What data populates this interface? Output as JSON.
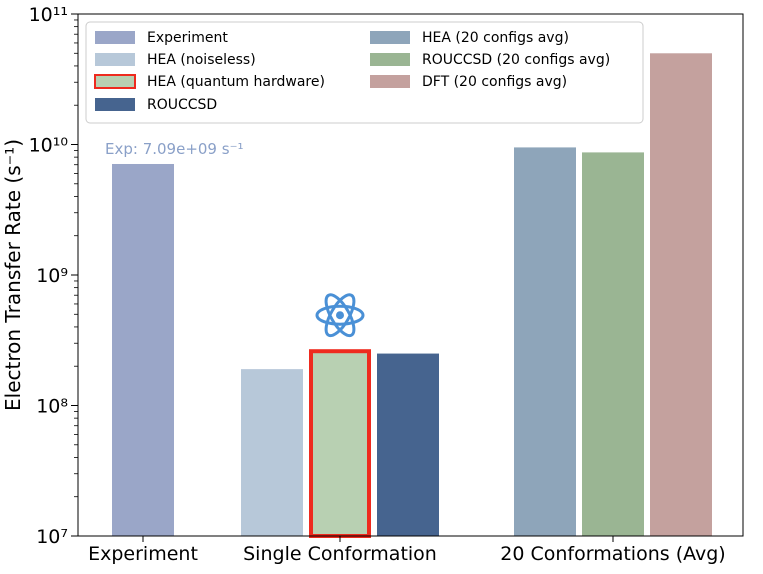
{
  "chart_data": {
    "type": "bar",
    "title": "",
    "xlabel": "",
    "ylabel": "Electron Transfer Rate (s⁻¹)",
    "yscale": "log",
    "ylim": [
      10000000,
      100000000000
    ],
    "yticks": [
      {
        "value": 10000000,
        "label": "10⁷"
      },
      {
        "value": 100000000,
        "label": "10⁸"
      },
      {
        "value": 1000000000,
        "label": "10⁹"
      },
      {
        "value": 10000000000,
        "label": "10¹⁰"
      },
      {
        "value": 100000000000,
        "label": "10¹¹"
      }
    ],
    "categories": [
      "Experiment",
      "Single Conformation",
      "20 Conformations (Avg)"
    ],
    "grid": false,
    "legend_position": "top-left",
    "series": [
      {
        "name": "Experiment",
        "group": "Experiment",
        "value": 7090000000,
        "color": "#9aa6c8"
      },
      {
        "name": "HEA (noiseless)",
        "group": "Single Conformation",
        "value": 190000000,
        "color": "#b7c8d9"
      },
      {
        "name": "HEA (quantum hardware)",
        "group": "Single Conformation",
        "value": 270000000,
        "color": "#b8d0b2",
        "edge": "#ee2a1e",
        "icon": "atom-icon"
      },
      {
        "name": "ROUCCSD",
        "group": "Single Conformation",
        "value": 250000000,
        "color": "#46648f"
      },
      {
        "name": "HEA (20 configs avg)",
        "group": "20 Conformations (Avg)",
        "value": 9500000000,
        "color": "#8ea5ba"
      },
      {
        "name": "ROUCCSD (20 configs avg)",
        "group": "20 Conformations (Avg)",
        "value": 8700000000,
        "color": "#9ab593"
      },
      {
        "name": "DFT (20 configs avg)",
        "group": "20 Conformations (Avg)",
        "value": 50000000000,
        "color": "#c4a19e"
      }
    ],
    "annotations": [
      {
        "text": "Exp: 7.09e+09 s⁻¹",
        "color": "#8aa0c8"
      }
    ]
  }
}
